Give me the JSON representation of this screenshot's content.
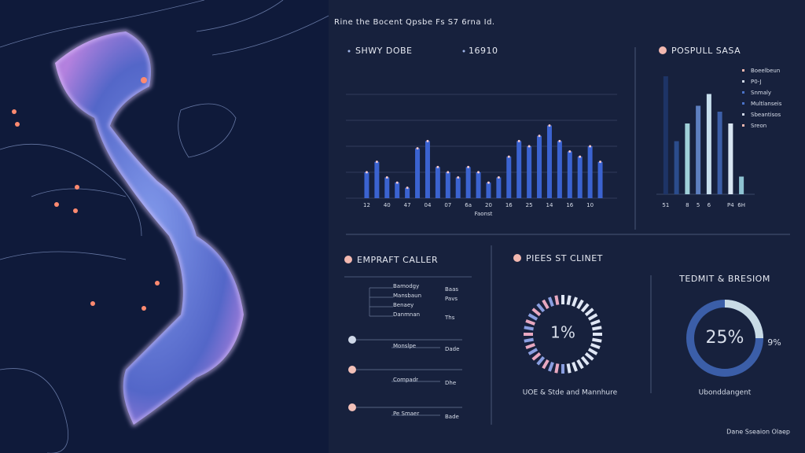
{
  "header": {
    "title": "Rine the Bocent Qpsbe Fs S7 6rna Id."
  },
  "chart_data": [
    {
      "type": "bar",
      "title": "SHWY DOBE",
      "subtitle": "16910",
      "x_label": "Faonst",
      "categories": [
        "12",
        null,
        "40",
        null,
        "47",
        null,
        "04",
        null,
        "07",
        null,
        "6a",
        null,
        "20",
        null,
        "16",
        null,
        "25",
        null,
        "14",
        null,
        "16",
        null,
        "10",
        null
      ],
      "values": [
        25,
        35,
        20,
        15,
        10,
        48,
        55,
        30,
        25,
        20,
        30,
        25,
        15,
        20,
        40,
        55,
        50,
        60,
        70,
        55,
        45,
        40,
        50,
        35
      ],
      "color": "#3b63d0",
      "ylim": [
        0,
        100
      ],
      "yticks": [
        0,
        25,
        50,
        75,
        100
      ],
      "grid": true
    },
    {
      "type": "bar",
      "title": "POSPULL SASA",
      "categories": [
        "51",
        null,
        "8",
        "5",
        "6",
        null,
        "P4",
        "6H"
      ],
      "values": [
        100,
        45,
        60,
        75,
        85,
        70,
        60,
        15
      ],
      "colors": [
        "#1e3466",
        "#2b4c8c",
        "#9fd0d8",
        "#5d7fc0",
        "#c8e0ee",
        "#3c5fa8",
        "#d9e6f2",
        "#8ec3d2"
      ],
      "ylim": [
        0,
        100
      ],
      "legend": [
        "Boeelbeun",
        "P0-J",
        "Snmaly",
        "Multlanseis",
        "Sbeantisos",
        "Sreon"
      ],
      "legend_colors": [
        "#f2b8b0",
        "#cfd8e8",
        "#4a72c8",
        "#4a72c8",
        "#cfd8e8",
        "#f2b8b0"
      ]
    },
    {
      "type": "donut",
      "title": "TEDMIT & BRESIOM",
      "value": 25,
      "value_labels": [
        "25%"
      ],
      "side_label": "9%",
      "caption": "Ubonddangent",
      "ylim": [
        0,
        100
      ],
      "color": "#c9dbe6",
      "track": "#3b5ea8"
    }
  ],
  "list_panel": {
    "title": "EMPRAFT CALLER",
    "items": [
      {
        "left": "Bamodgy",
        "right": "Baas"
      },
      {
        "left": "Mansbaun",
        "right": "Pavs"
      },
      {
        "left": "Benaey",
        "right": ""
      },
      {
        "left": "Danmnan",
        "right": "Ths"
      },
      {
        "left": "Monslpe",
        "right": "Dade"
      },
      {
        "left": "Compadr",
        "right": "Dhe"
      },
      {
        "left": "Pe Smaer",
        "right": "Bade"
      }
    ]
  },
  "gauge_panel": {
    "title": "PIEES ST CLINET",
    "label": "1%",
    "caption": "UOE & Stde and Mannhure"
  },
  "footer": "Dane Sseaion Olaep"
}
